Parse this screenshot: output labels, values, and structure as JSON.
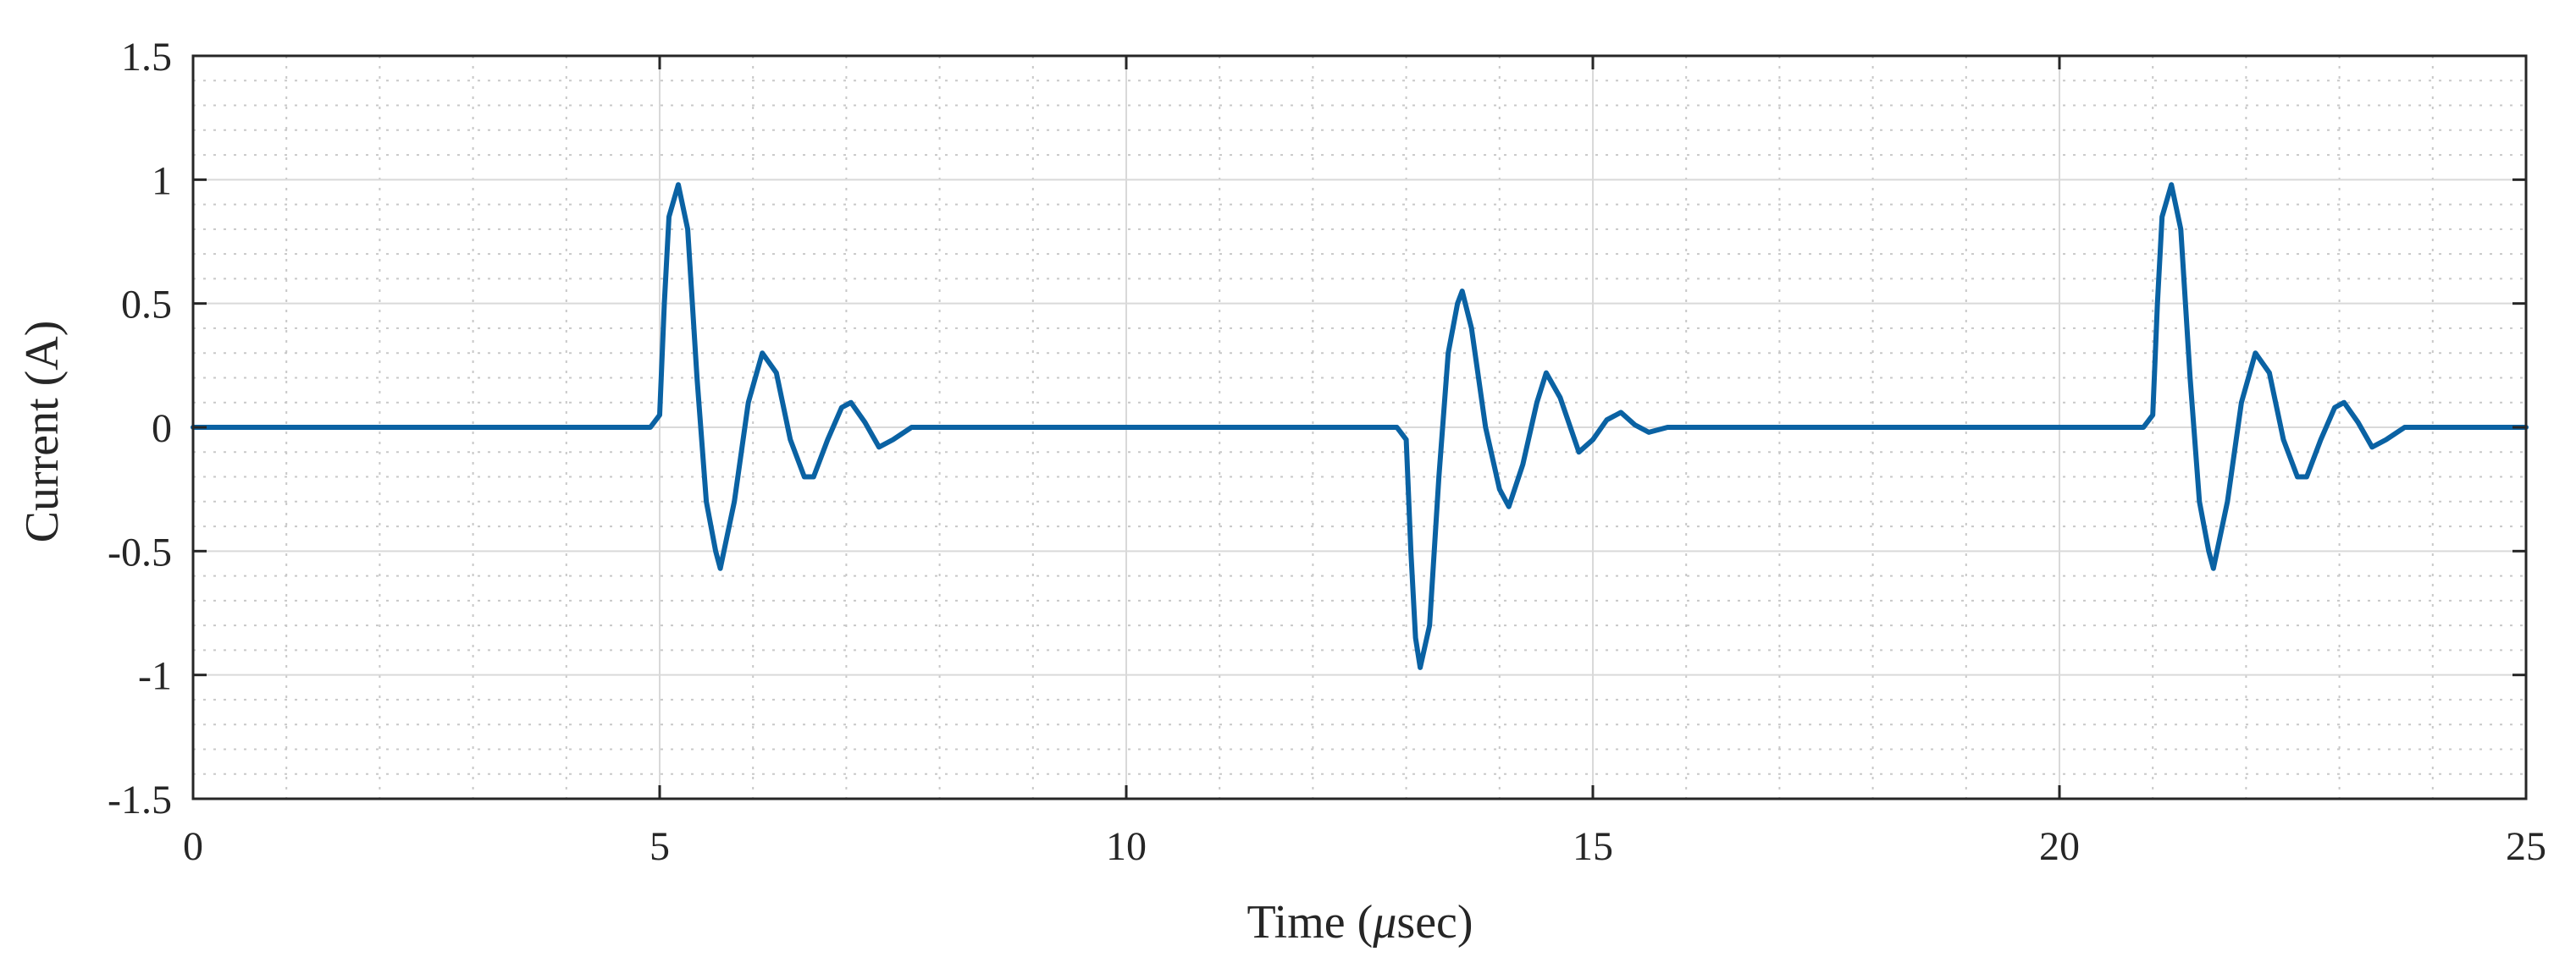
{
  "chart_data": {
    "type": "line",
    "xlabel_prefix": "Time (",
    "xlabel_unit_symbol": "μ",
    "xlabel_suffix": "sec)",
    "ylabel": "Current (A)",
    "xlim": [
      0,
      25
    ],
    "ylim": [
      -1.5,
      1.5
    ],
    "x_ticks": [
      0,
      5,
      10,
      15,
      20,
      25
    ],
    "x_tick_labels": [
      "0",
      "5",
      "10",
      "15",
      "20",
      "25"
    ],
    "y_ticks": [
      -1.5,
      -1,
      -0.5,
      0,
      0.5,
      1,
      1.5
    ],
    "y_tick_labels": [
      "-1.5",
      "-1",
      "-0.5",
      "0",
      "0.5",
      "1",
      "1.5"
    ],
    "x_minor_step": 1,
    "y_minor_step": 0.1,
    "grid": true,
    "minor_grid": true,
    "line_color": "#0a62a3",
    "series": [
      {
        "x": [
          0,
          0.5,
          1,
          1.5,
          2,
          2.5,
          3,
          3.5,
          4,
          4.5,
          4.9,
          5.0,
          5.05,
          5.1,
          5.2,
          5.3,
          5.4,
          5.5,
          5.6,
          5.65,
          5.8,
          5.95,
          6.1,
          6.25,
          6.4,
          6.55,
          6.65,
          6.8,
          6.95,
          7.05,
          7.2,
          7.35,
          7.5,
          7.7,
          8,
          9,
          10,
          11,
          12,
          12.9,
          13.0,
          13.05,
          13.1,
          13.15,
          13.25,
          13.35,
          13.45,
          13.55,
          13.6,
          13.7,
          13.85,
          14.0,
          14.1,
          14.25,
          14.4,
          14.5,
          14.65,
          14.85,
          15.0,
          15.15,
          15.3,
          15.45,
          15.6,
          15.8,
          16,
          17,
          18,
          19,
          20,
          20.9,
          21.0,
          21.05,
          21.1,
          21.2,
          21.3,
          21.4,
          21.5,
          21.6,
          21.65,
          21.8,
          21.95,
          22.1,
          22.25,
          22.4,
          22.55,
          22.65,
          22.8,
          22.95,
          23.05,
          23.2,
          23.35,
          23.5,
          23.7,
          24,
          24.5,
          25
        ],
        "y": [
          0,
          0,
          0,
          0,
          0,
          0,
          0,
          0,
          0,
          0,
          0,
          0.05,
          0.5,
          0.85,
          0.98,
          0.8,
          0.2,
          -0.3,
          -0.5,
          -0.57,
          -0.3,
          0.1,
          0.3,
          0.22,
          -0.05,
          -0.2,
          -0.2,
          -0.05,
          0.08,
          0.1,
          0.02,
          -0.08,
          -0.05,
          0,
          0,
          0,
          0,
          0,
          0,
          0,
          -0.05,
          -0.5,
          -0.85,
          -0.97,
          -0.8,
          -0.2,
          0.3,
          0.5,
          0.55,
          0.4,
          0.0,
          -0.25,
          -0.32,
          -0.15,
          0.1,
          0.22,
          0.12,
          -0.1,
          -0.05,
          0.03,
          0.06,
          0.01,
          -0.02,
          0,
          0,
          0,
          0,
          0,
          0,
          0,
          0.05,
          0.5,
          0.85,
          0.98,
          0.8,
          0.2,
          -0.3,
          -0.5,
          -0.57,
          -0.3,
          0.1,
          0.3,
          0.22,
          -0.05,
          -0.2,
          -0.2,
          -0.05,
          0.08,
          0.1,
          0.02,
          -0.08,
          -0.05,
          0,
          0,
          0,
          0
        ]
      }
    ]
  }
}
